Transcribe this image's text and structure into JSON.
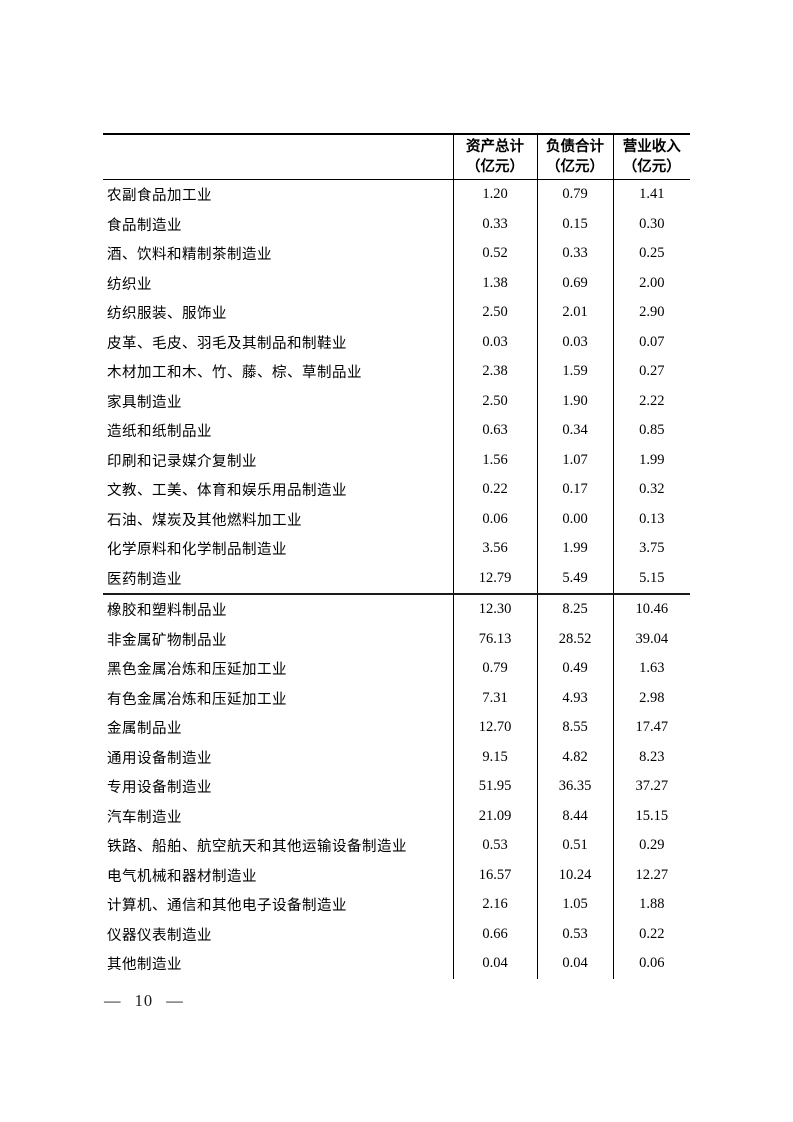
{
  "page": {
    "number_label": "— 10 —"
  },
  "table": {
    "columns": [
      {
        "line1": "资产总计",
        "line2": "（亿元）"
      },
      {
        "line1": "负债合计",
        "line2": "（亿元）"
      },
      {
        "line1": "营业收入",
        "line2": "（亿元）"
      }
    ],
    "rows": [
      {
        "name": "农副食品加工业",
        "values": [
          "1.20",
          "0.79",
          "1.41"
        ]
      },
      {
        "name": "食品制造业",
        "values": [
          "0.33",
          "0.15",
          "0.30"
        ]
      },
      {
        "name": "酒、饮料和精制茶制造业",
        "values": [
          "0.52",
          "0.33",
          "0.25"
        ]
      },
      {
        "name": "纺织业",
        "values": [
          "1.38",
          "0.69",
          "2.00"
        ]
      },
      {
        "name": "纺织服装、服饰业",
        "values": [
          "2.50",
          "2.01",
          "2.90"
        ]
      },
      {
        "name": "皮革、毛皮、羽毛及其制品和制鞋业",
        "values": [
          "0.03",
          "0.03",
          "0.07"
        ]
      },
      {
        "name": "木材加工和木、竹、藤、棕、草制品业",
        "values": [
          "2.38",
          "1.59",
          "0.27"
        ]
      },
      {
        "name": "家具制造业",
        "values": [
          "2.50",
          "1.90",
          "2.22"
        ]
      },
      {
        "name": "造纸和纸制品业",
        "values": [
          "0.63",
          "0.34",
          "0.85"
        ]
      },
      {
        "name": "印刷和记录媒介复制业",
        "values": [
          "1.56",
          "1.07",
          "1.99"
        ]
      },
      {
        "name": "文教、工美、体育和娱乐用品制造业",
        "values": [
          "0.22",
          "0.17",
          "0.32"
        ]
      },
      {
        "name": "石油、煤炭及其他燃料加工业",
        "values": [
          "0.06",
          "0.00",
          "0.13"
        ]
      },
      {
        "name": "化学原料和化学制品制造业",
        "values": [
          "3.56",
          "1.99",
          "3.75"
        ]
      },
      {
        "name": "医药制造业",
        "values": [
          "12.79",
          "5.49",
          "5.15"
        ]
      },
      {
        "name": "橡胶和塑料制品业",
        "values": [
          "12.30",
          "8.25",
          "10.46"
        ],
        "section_break": true
      },
      {
        "name": "非金属矿物制品业",
        "values": [
          "76.13",
          "28.52",
          "39.04"
        ]
      },
      {
        "name": "黑色金属冶炼和压延加工业",
        "values": [
          "0.79",
          "0.49",
          "1.63"
        ]
      },
      {
        "name": "有色金属冶炼和压延加工业",
        "values": [
          "7.31",
          "4.93",
          "2.98"
        ]
      },
      {
        "name": "金属制品业",
        "values": [
          "12.70",
          "8.55",
          "17.47"
        ]
      },
      {
        "name": "通用设备制造业",
        "values": [
          "9.15",
          "4.82",
          "8.23"
        ]
      },
      {
        "name": "专用设备制造业",
        "values": [
          "51.95",
          "36.35",
          "37.27"
        ]
      },
      {
        "name": "汽车制造业",
        "values": [
          "21.09",
          "8.44",
          "15.15"
        ]
      },
      {
        "name": "铁路、船舶、航空航天和其他运输设备制造业",
        "values": [
          "0.53",
          "0.51",
          "0.29"
        ]
      },
      {
        "name": "电气机械和器材制造业",
        "values": [
          "16.57",
          "10.24",
          "12.27"
        ]
      },
      {
        "name": "计算机、通信和其他电子设备制造业",
        "values": [
          "2.16",
          "1.05",
          "1.88"
        ]
      },
      {
        "name": "仪器仪表制造业",
        "values": [
          "0.66",
          "0.53",
          "0.22"
        ]
      },
      {
        "name": "其他制造业",
        "values": [
          "0.04",
          "0.04",
          "0.06"
        ]
      }
    ]
  }
}
